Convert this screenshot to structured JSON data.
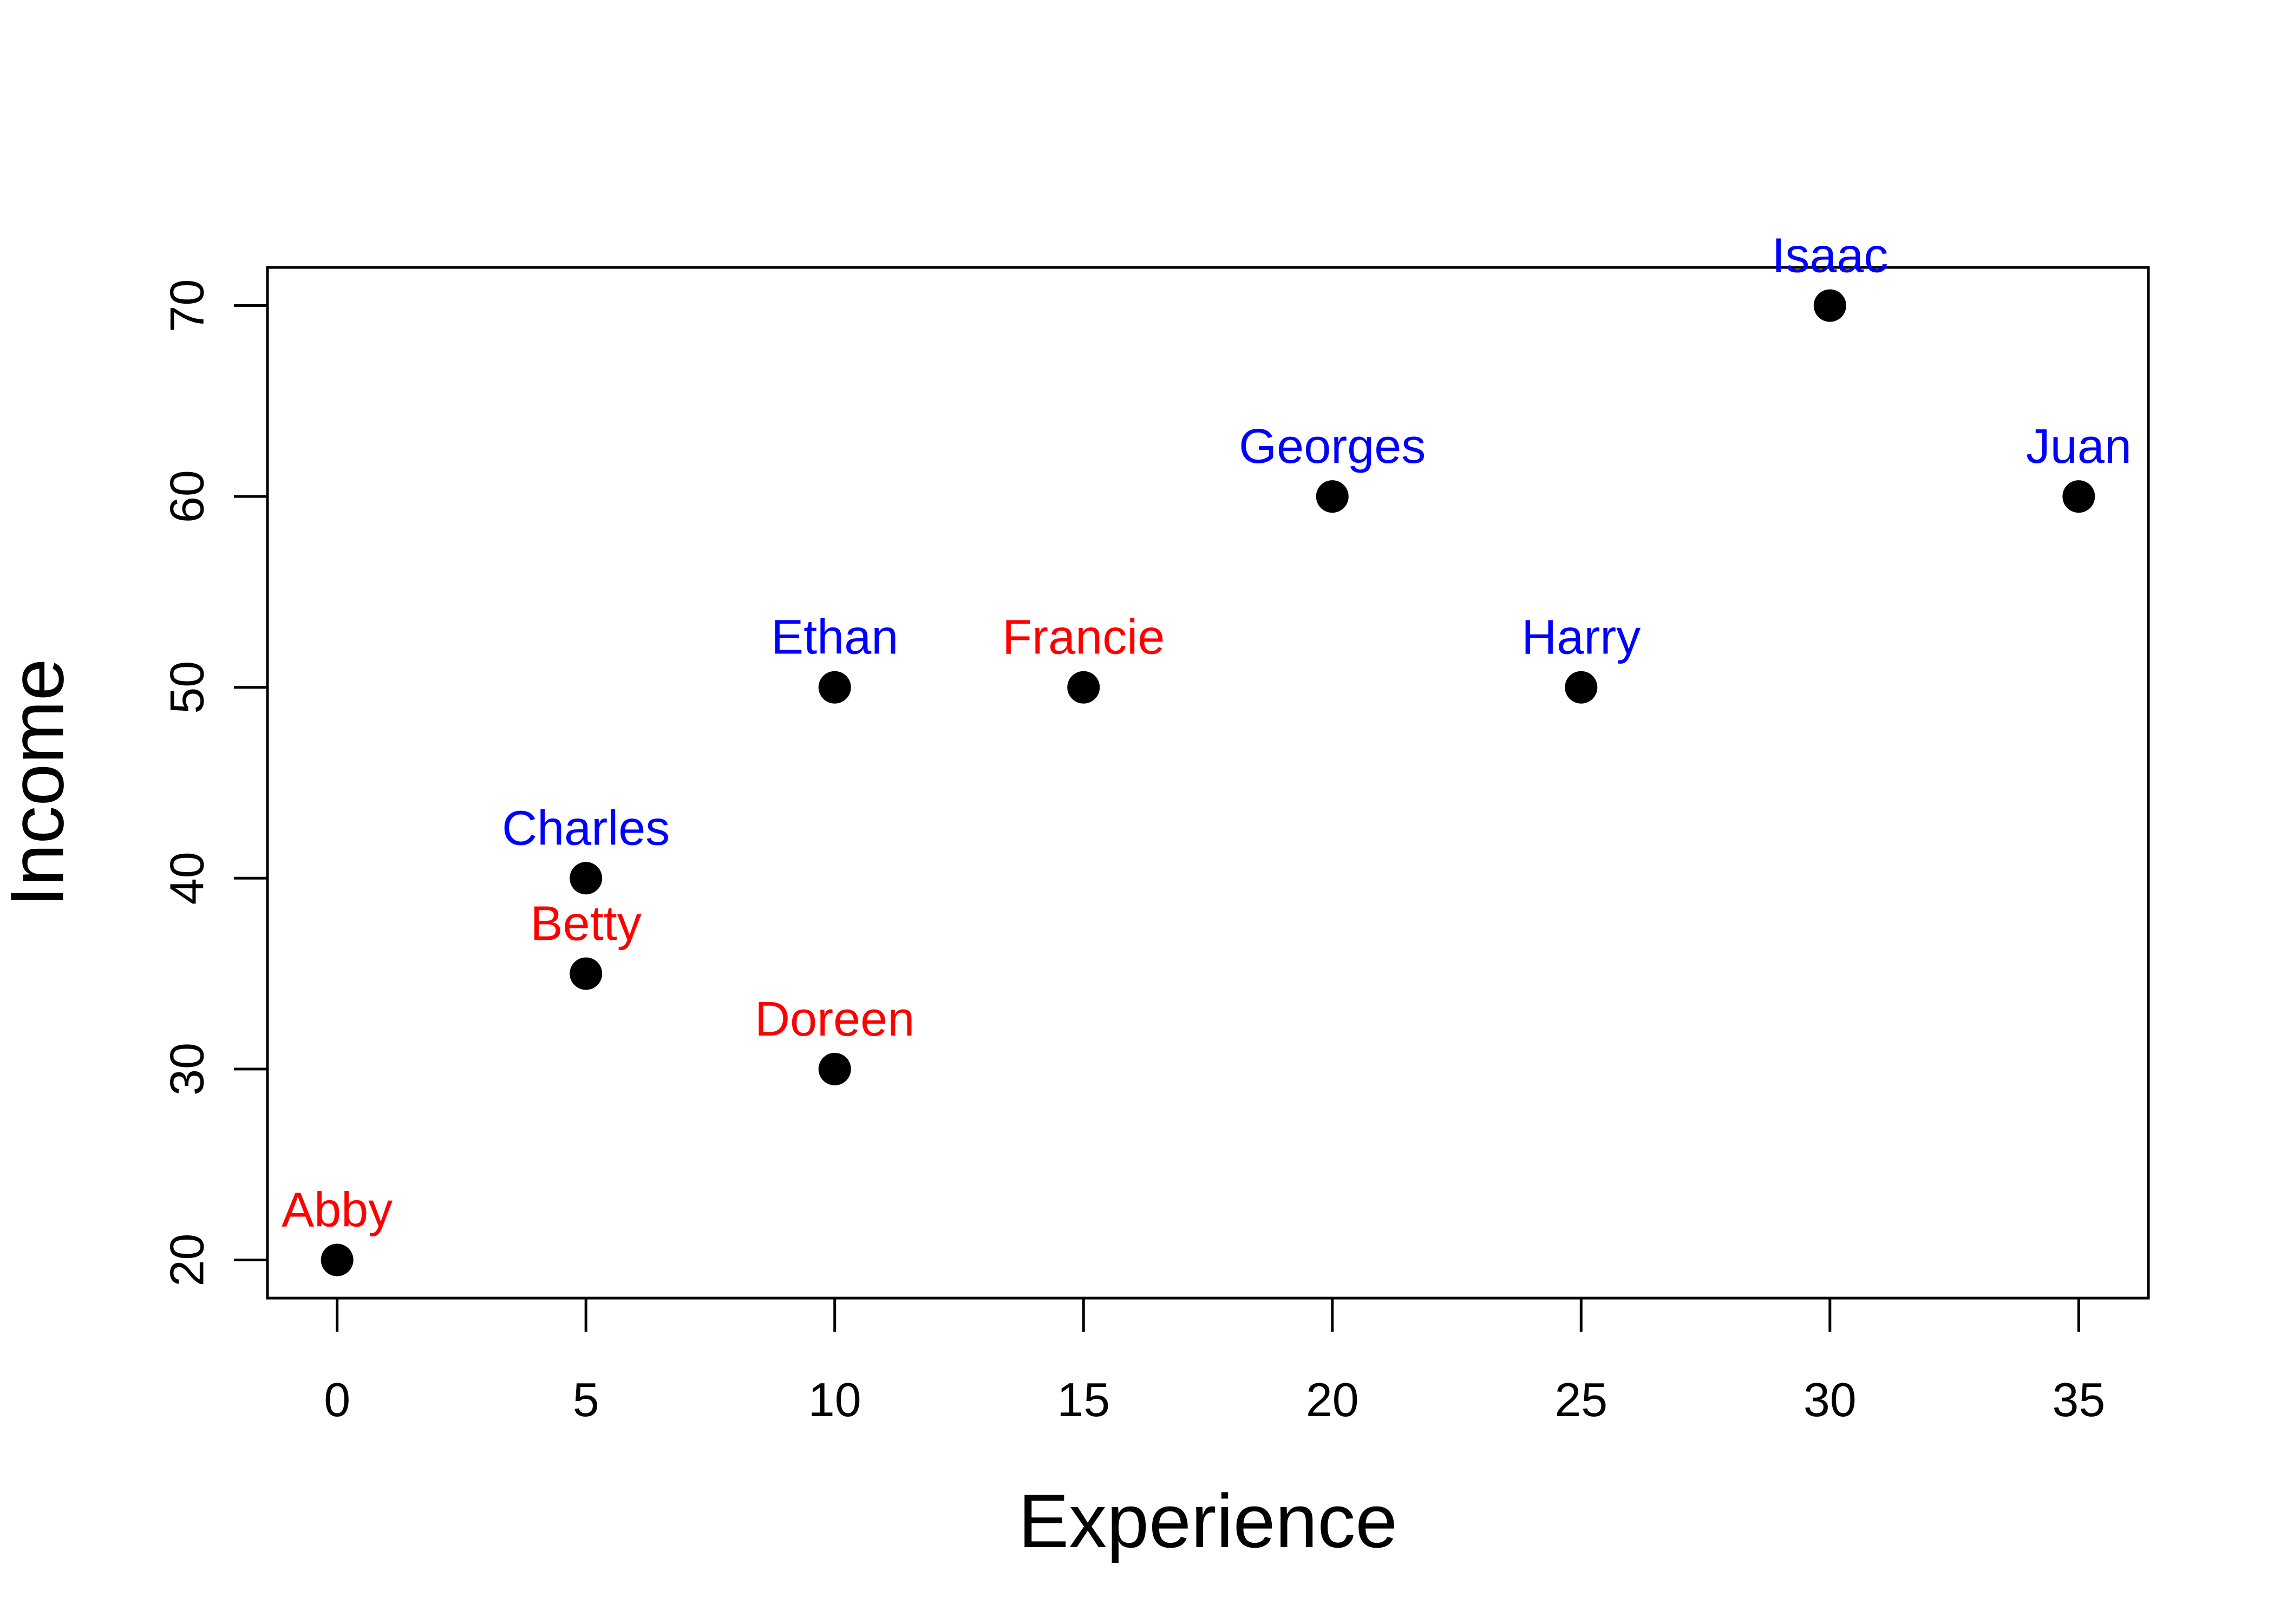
{
  "chart_data": {
    "type": "scatter",
    "xlabel": "Experience",
    "ylabel": "Income",
    "xlim": [
      -1.4,
      36.4
    ],
    "ylim": [
      18.0,
      72.0
    ],
    "x_ticks": [
      0,
      5,
      10,
      15,
      20,
      25,
      30,
      35
    ],
    "y_ticks": [
      20,
      30,
      40,
      50,
      60,
      70
    ],
    "grid": false,
    "legend": "none",
    "colors": {
      "point": "#000000",
      "label_red": "#ff0000",
      "label_blue": "#0000ff",
      "axis": "#000000"
    },
    "points": [
      {
        "label": "Abby",
        "x": 0,
        "y": 20,
        "label_color": "#ff0000"
      },
      {
        "label": "Betty",
        "x": 5,
        "y": 35,
        "label_color": "#ff0000"
      },
      {
        "label": "Charles",
        "x": 5,
        "y": 40,
        "label_color": "#0000ff"
      },
      {
        "label": "Doreen",
        "x": 10,
        "y": 30,
        "label_color": "#ff0000"
      },
      {
        "label": "Ethan",
        "x": 10,
        "y": 50,
        "label_color": "#0000ff"
      },
      {
        "label": "Francie",
        "x": 15,
        "y": 50,
        "label_color": "#ff0000"
      },
      {
        "label": "Georges",
        "x": 20,
        "y": 60,
        "label_color": "#0000ff"
      },
      {
        "label": "Harry",
        "x": 25,
        "y": 50,
        "label_color": "#0000ff"
      },
      {
        "label": "Isaac",
        "x": 30,
        "y": 70,
        "label_color": "#0000ff"
      },
      {
        "label": "Juan",
        "x": 35,
        "y": 60,
        "label_color": "#0000ff"
      }
    ]
  }
}
